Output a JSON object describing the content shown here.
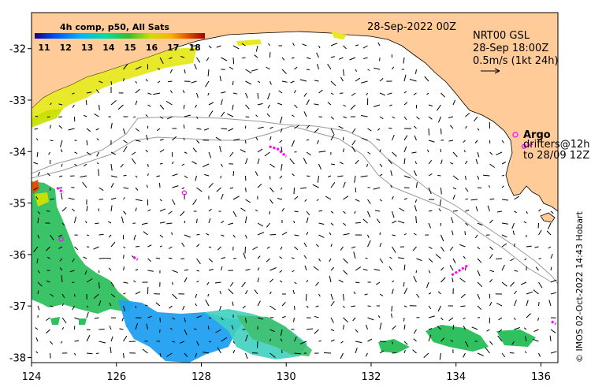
{
  "colorbar": {
    "title": "4h comp, p50, All Sats",
    "labels": [
      "11",
      "12",
      "13",
      "14",
      "15",
      "16",
      "17",
      "18"
    ],
    "colors": [
      "#1a0080",
      "#0050ff",
      "#00b4ff",
      "#00e0a0",
      "#30c030",
      "#c8e000",
      "#ffb000",
      "#e05000",
      "#a00000"
    ]
  },
  "date_label": "28-Sep-2022 00Z",
  "legend": {
    "line1": "NRT00 GSL",
    "line2": "28-Sep 18:00Z",
    "line3": "0.5m/s (1kt 24h)"
  },
  "argo": {
    "title": "Argo",
    "line1": "drifters@12h",
    "line2": "to 28/09 12Z"
  },
  "credit": "© IMOS 02-Oct-2022 14:43 Hobart",
  "axes": {
    "x_ticks": [
      "124",
      "126",
      "128",
      "130",
      "132",
      "134",
      "136"
    ],
    "y_ticks": [
      "-32",
      "-33",
      "-34",
      "-35",
      "-36",
      "-37",
      "-38"
    ]
  },
  "colors": {
    "land": "#ffcc99",
    "sst_warm": "#e8e820",
    "sst_green": "#30c060",
    "sst_blue": "#20a0f0",
    "argo": "#ff00ff",
    "bathy": "#999999"
  },
  "chart_data": {
    "type": "map",
    "lon_range": [
      124,
      136.4
    ],
    "lat_range": [
      -38.1,
      -31.3
    ],
    "argo_floats": [
      {
        "lon": 127.6,
        "lat": -34.8
      },
      {
        "lon": 124.7,
        "lat": -35.7
      },
      {
        "lon": 135.6,
        "lat": -33.9
      }
    ],
    "argo_tracks": [
      {
        "lon": [
          129.6,
          129.8,
          130.0
        ],
        "lat": [
          -33.9,
          -33.95,
          -34.1
        ]
      },
      {
        "lon": [
          124.6,
          124.75
        ],
        "lat": [
          -34.7,
          -34.8
        ]
      },
      {
        "lon": [
          126.4,
          126.5
        ],
        "lat": [
          -36.05,
          -36.1
        ]
      },
      {
        "lon": [
          133.9,
          134.1,
          134.3
        ],
        "lat": [
          -36.4,
          -36.3,
          -36.2
        ]
      },
      {
        "lon": [
          135.6,
          135.8
        ],
        "lat": [
          -33.9,
          -33.85
        ]
      },
      {
        "lon": [
          136.25,
          136.35
        ],
        "lat": [
          -37.3,
          -37.35
        ]
      }
    ]
  }
}
